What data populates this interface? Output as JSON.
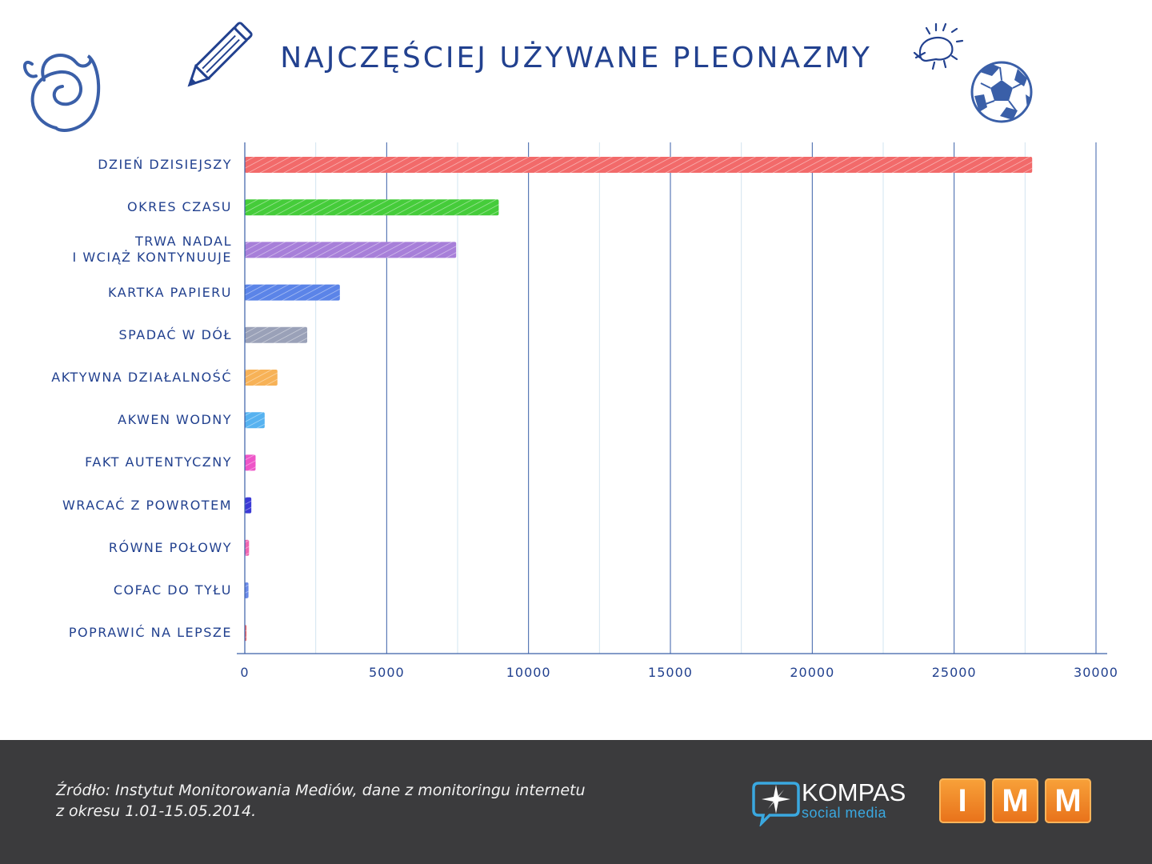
{
  "title": "NAJCZĘŚCIEJ UŻYWANE PLEONAZMY",
  "chart_data": {
    "type": "bar",
    "orientation": "horizontal",
    "title": "NAJCZĘŚCIEJ UŻYWANE PLEONAZMY",
    "xlabel": "",
    "ylabel": "",
    "xlim": [
      0,
      30000
    ],
    "ticks": [
      "0",
      "5000",
      "10000",
      "15000",
      "20000",
      "25000",
      "30000"
    ],
    "grid": true,
    "legend": "none",
    "categories": [
      "DZIEŃ DZISIEJSZY",
      "OKRES CZASU",
      "TRWA NADAL\nI WCIĄŻ KONTYNUUJE",
      "KARTKA PAPIERU",
      "SPADAĆ W DÓŁ",
      "AKTYWNA DZIAŁALNOŚĆ",
      "AKWEN WODNY",
      "FAKT AUTENTYCZNY",
      "WRACAĆ Z POWROTEM",
      "RÓWNE POŁOWY",
      "COFAC DO TYŁU",
      "POPRAWIĆ NA LEPSZE"
    ],
    "values": [
      27750,
      8950,
      7450,
      3350,
      2200,
      1150,
      700,
      380,
      230,
      150,
      130,
      60
    ],
    "colors": [
      "#f26a6a",
      "#45cc3a",
      "#a77fd9",
      "#5b84e8",
      "#9aa1b8",
      "#f7b257",
      "#56b2f0",
      "#ee55c8",
      "#3b3ad6",
      "#f066b0",
      "#6a8ae8",
      "#f06a6a"
    ]
  },
  "footer": {
    "source_line1": "Źródło: Instytut Monitorowania Mediów, dane z monitoringu internetu",
    "source_line2": "z okresu 1.01-15.05.2014.",
    "kompas_name": "KOMPAS",
    "kompas_tagline": "social media",
    "imm_letters": [
      "I",
      "M",
      "M"
    ]
  }
}
